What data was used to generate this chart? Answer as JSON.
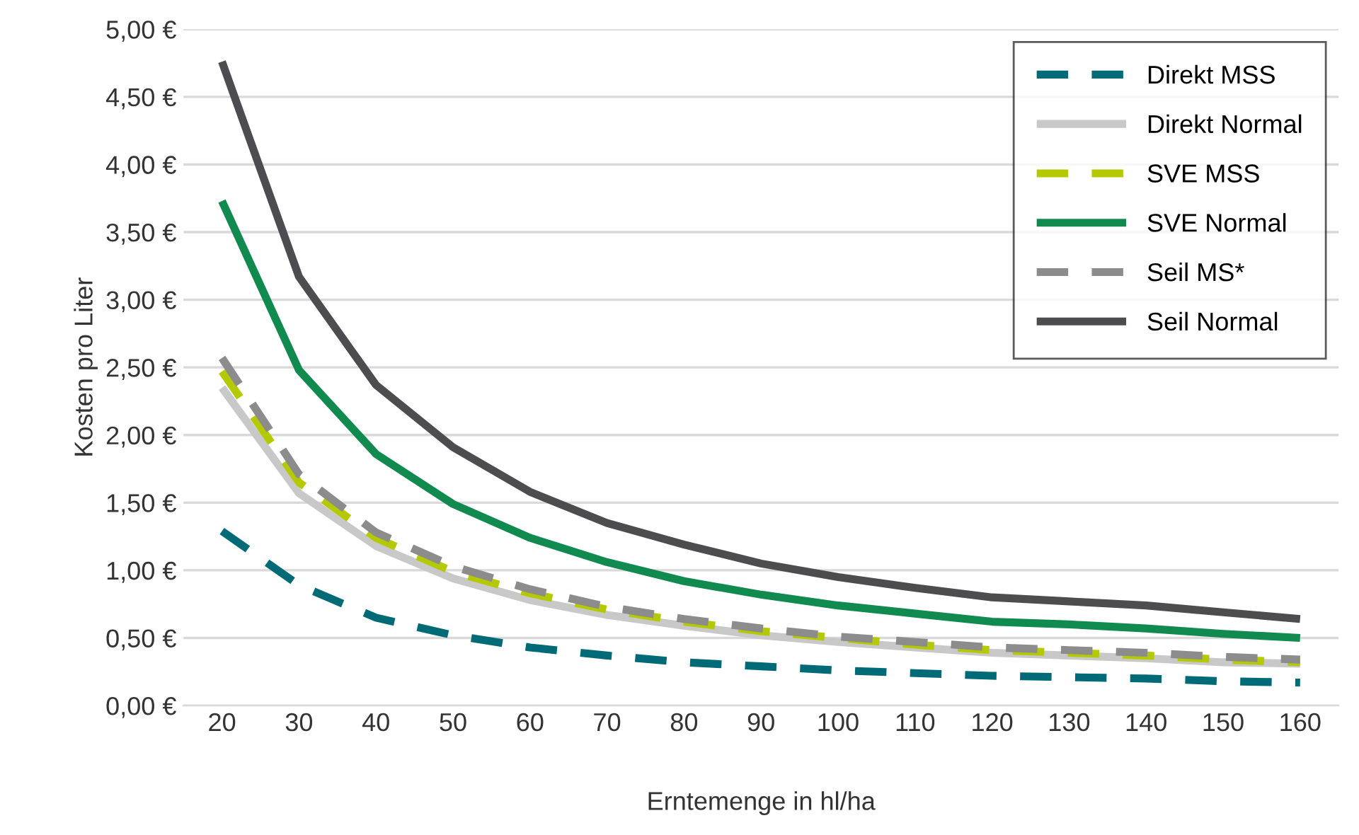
{
  "chart_data": {
    "type": "line",
    "xlabel": "Erntemenge in hl/ha",
    "ylabel": "Kosten pro Liter",
    "categories": [
      "20",
      "30",
      "40",
      "50",
      "60",
      "70",
      "80",
      "90",
      "100",
      "110",
      "120",
      "130",
      "140",
      "150",
      "160"
    ],
    "ylim": [
      0,
      5
    ],
    "yticks": [
      {
        "value": 0,
        "label": "0,00 €"
      },
      {
        "value": 0.5,
        "label": "0,50 €"
      },
      {
        "value": 1,
        "label": "1,00 €"
      },
      {
        "value": 1.5,
        "label": "1,50 €"
      },
      {
        "value": 2,
        "label": "2,00 €"
      },
      {
        "value": 2.5,
        "label": "2,50 €"
      },
      {
        "value": 3,
        "label": "3,00 €"
      },
      {
        "value": 3.5,
        "label": "3,50 €"
      },
      {
        "value": 4,
        "label": "4,00 €"
      },
      {
        "value": 4.5,
        "label": "4,50 €"
      },
      {
        "value": 5,
        "label": "5,00 €"
      }
    ],
    "grid": "y",
    "legend": "top right",
    "marker": "none",
    "series": [
      {
        "name": "Direkt MSS",
        "color": "#006b77",
        "line_style": "dashed",
        "values": [
          1.29,
          0.89,
          0.65,
          0.52,
          0.43,
          0.37,
          0.32,
          0.29,
          0.26,
          0.24,
          0.22,
          0.21,
          0.2,
          0.18,
          0.17
        ]
      },
      {
        "name": "Direkt Normal",
        "color": "#c8c8c8",
        "line_style": "solid",
        "values": [
          2.35,
          1.57,
          1.18,
          0.94,
          0.78,
          0.67,
          0.59,
          0.52,
          0.47,
          0.43,
          0.39,
          0.37,
          0.35,
          0.32,
          0.31
        ]
      },
      {
        "name": "SVE MSS",
        "color": "#b5c900",
        "line_style": "dashed",
        "values": [
          2.47,
          1.65,
          1.24,
          0.99,
          0.83,
          0.71,
          0.62,
          0.55,
          0.5,
          0.45,
          0.41,
          0.39,
          0.37,
          0.34,
          0.32
        ]
      },
      {
        "name": "SVE Normal",
        "color": "#118a50",
        "line_style": "solid",
        "values": [
          3.73,
          2.48,
          1.86,
          1.49,
          1.24,
          1.06,
          0.92,
          0.82,
          0.74,
          0.68,
          0.62,
          0.6,
          0.57,
          0.53,
          0.5
        ]
      },
      {
        "name": "Seil MS*",
        "color": "#8c8c8c",
        "line_style": "dashed",
        "values": [
          2.57,
          1.71,
          1.28,
          1.03,
          0.86,
          0.73,
          0.64,
          0.57,
          0.51,
          0.47,
          0.43,
          0.41,
          0.39,
          0.36,
          0.34
        ]
      },
      {
        "name": "Seil Normal",
        "color": "#4d4d4f",
        "line_style": "solid",
        "values": [
          4.76,
          3.17,
          2.37,
          1.91,
          1.58,
          1.35,
          1.19,
          1.05,
          0.95,
          0.87,
          0.8,
          0.77,
          0.74,
          0.69,
          0.64
        ]
      }
    ]
  }
}
